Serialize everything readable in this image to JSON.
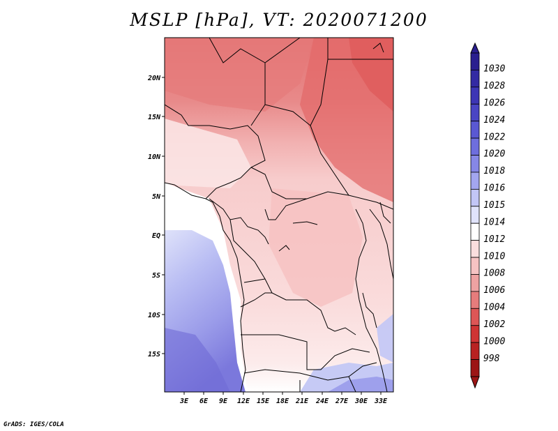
{
  "title": "MSLP [hPa], VT: 2020071200",
  "credit": "GrADS: IGES/COLA",
  "map": {
    "lat_labels": [
      "20N",
      "15N",
      "10N",
      "5N",
      "EQ",
      "5S",
      "10S",
      "15S"
    ],
    "lon_labels": [
      "3E",
      "6E",
      "9E",
      "12E",
      "15E",
      "18E",
      "21E",
      "24E",
      "27E",
      "30E",
      "33E"
    ]
  },
  "colorbar": {
    "labels": [
      "1030",
      "1028",
      "1026",
      "1024",
      "1022",
      "1020",
      "1018",
      "1016",
      "1015",
      "1014",
      "1012",
      "1010",
      "1008",
      "1006",
      "1004",
      "1002",
      "1000",
      "998"
    ],
    "colors": [
      "#2a1f8f",
      "#332aa3",
      "#3d36b5",
      "#4a45c4",
      "#5a58d2",
      "#6e6edd",
      "#8687e6",
      "#a3a6ef",
      "#c2c6f6",
      "#e0e3fb",
      "#ffffff",
      "#fadede",
      "#f6c3c3",
      "#eea2a2",
      "#e67c7c",
      "#dd5656",
      "#cf3434",
      "#b82222",
      "#9c1515"
    ]
  }
}
